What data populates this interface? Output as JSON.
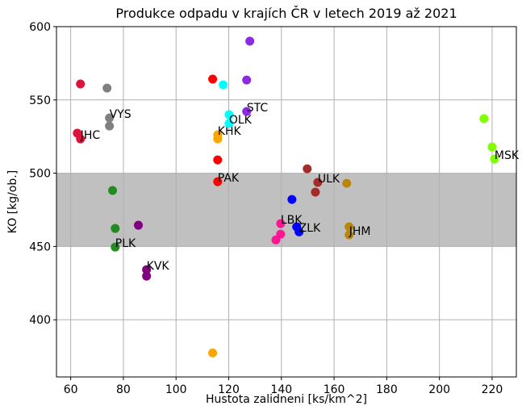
{
  "chart_data": {
    "type": "scatter",
    "title": "Produkce odpadu v krajích ČR v letech 2019 až 2021",
    "xlabel": "Hustota zalidneni  [ks/km^2]",
    "ylabel": "KO [kg/ob.]",
    "xlim": [
      54.6,
      229.2
    ],
    "ylim": [
      361,
      600
    ],
    "xticks": [
      60,
      80,
      100,
      120,
      140,
      160,
      180,
      200,
      220
    ],
    "yticks": [
      400,
      450,
      500,
      550,
      600
    ],
    "grid": true,
    "shaded_band": {
      "range": [
        450,
        500
      ],
      "color": "#c0c0c0"
    },
    "series": [
      {
        "name": "JHC",
        "color": "#dc143c",
        "x": [
          63.7,
          62.5,
          63.7
        ],
        "values": [
          560.9,
          527.3,
          523.4
        ]
      },
      {
        "name": "VYS",
        "color": "#808080",
        "x": [
          73.8,
          74.7,
          74.7
        ],
        "values": [
          558.1,
          532.2,
          537.7
        ]
      },
      {
        "name": "PLK",
        "color": "#228b22",
        "x": [
          75.9,
          76.9,
          76.9
        ],
        "values": [
          488.2,
          462.3,
          449.6
        ]
      },
      {
        "name": "KVK",
        "color": "#800080",
        "x": [
          85.7,
          88.8,
          88.8
        ],
        "values": [
          464.5,
          429.8,
          434.2
        ]
      },
      {
        "name": "KHK",
        "color": "#ffa500",
        "x": [
          113.9,
          115.8,
          115.8
        ],
        "values": [
          377.4,
          523.4,
          526.2
        ]
      },
      {
        "name": "PAK",
        "color": "#ff0000",
        "x": [
          113.9,
          115.8,
          115.8
        ],
        "values": [
          564.2,
          509.1,
          494.2
        ]
      },
      {
        "name": "OLK",
        "color": "#00ffff",
        "x": [
          117.9,
          120.1,
          120.1
        ],
        "values": [
          560.3,
          540.0,
          533.9
        ]
      },
      {
        "name": "STC",
        "color": "#8a2be2",
        "x": [
          128.0,
          126.8,
          126.8
        ],
        "values": [
          590.1,
          563.6,
          542.1
        ]
      },
      {
        "name": "ZLK",
        "color": "#0000ff",
        "x": [
          144.0,
          145.8,
          146.7
        ],
        "values": [
          482.1,
          463.4,
          460.0
        ]
      },
      {
        "name": "LBK",
        "color": "#ff1493",
        "x": [
          139.7,
          137.9,
          139.7
        ],
        "values": [
          458.4,
          454.5,
          465.6
        ]
      },
      {
        "name": "ULK",
        "color": "#a52a2a",
        "x": [
          149.8,
          152.9,
          153.8
        ],
        "values": [
          503.0,
          487.1,
          493.7
        ]
      },
      {
        "name": "JHM",
        "color": "#b8860b",
        "x": [
          164.8,
          165.7,
          165.7
        ],
        "values": [
          493.1,
          463.4,
          457.9
        ]
      },
      {
        "name": "MSK",
        "color": "#7fff00",
        "x": [
          216.9,
          220.0,
          220.9
        ],
        "values": [
          537.2,
          517.9,
          509.6
        ]
      }
    ]
  }
}
